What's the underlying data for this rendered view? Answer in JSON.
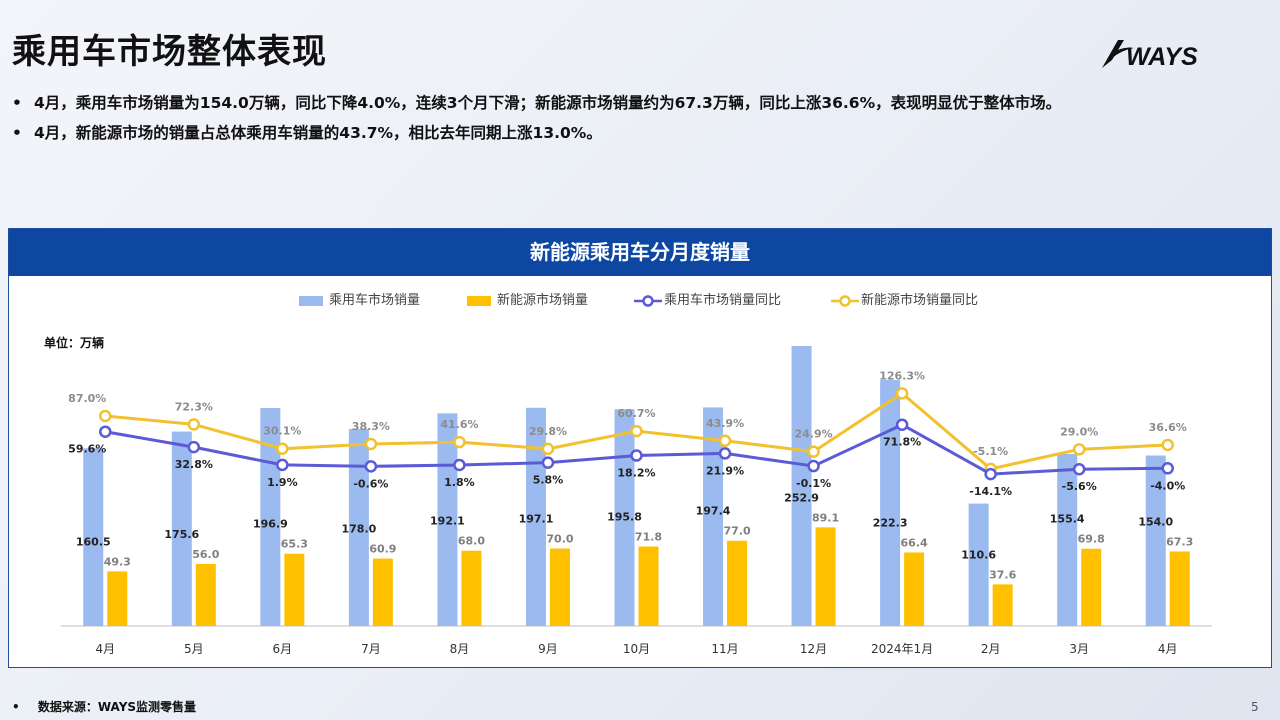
{
  "header": {
    "title": "乘用车市场整体表现",
    "logo_text": "WAYS",
    "bullets": [
      "4月，乘用车市场销量为154.0万辆，同比下降4.0%，连续3个月下滑；新能源市场销量约为67.3万辆，同比上涨36.6%，表现明显优于整体市场。",
      "4月，新能源市场的销量占总体乘用车销量的43.7%，相比去年同期上涨13.0%。"
    ]
  },
  "footer": {
    "source": "数据来源：WAYS监测零售量",
    "page": "5"
  },
  "colors": {
    "total_bar": "#9bbaf0",
    "nev_bar": "#ffc000",
    "total_line": "#5b5bd6",
    "nev_line": "#f2c12e",
    "header_blue": "#0d47a1"
  },
  "chart_data": {
    "type": "bar",
    "title": "新能源乘用车分月度销量",
    "unit_label": "单位：万辆",
    "categories": [
      "4月",
      "5月",
      "6月",
      "7月",
      "8月",
      "9月",
      "10月",
      "11月",
      "12月",
      "2024年1月",
      "2月",
      "3月",
      "4月"
    ],
    "series": [
      {
        "name": "乘用车市场销量",
        "type": "bar",
        "axis": "left",
        "values": [
          160.5,
          175.6,
          196.9,
          178.0,
          192.1,
          197.1,
          195.8,
          197.4,
          252.9,
          222.3,
          110.6,
          155.4,
          154.0
        ]
      },
      {
        "name": "新能源市场销量",
        "type": "bar",
        "axis": "left",
        "values": [
          49.3,
          56.0,
          65.3,
          60.9,
          68.0,
          70.0,
          71.8,
          77.0,
          89.1,
          66.4,
          37.6,
          69.8,
          67.3
        ]
      },
      {
        "name": "乘用车市场销量同比",
        "type": "line",
        "axis": "right",
        "unit": "%",
        "values": [
          59.6,
          32.8,
          1.9,
          -0.6,
          1.8,
          5.8,
          18.2,
          21.9,
          -0.1,
          71.8,
          -14.1,
          -5.6,
          -4.0
        ]
      },
      {
        "name": "新能源市场销量同比",
        "type": "line",
        "axis": "right",
        "unit": "%",
        "values": [
          87.0,
          72.3,
          30.1,
          38.3,
          41.6,
          29.8,
          60.7,
          43.9,
          24.9,
          126.3,
          -5.1,
          29.0,
          36.6
        ]
      }
    ],
    "legend_position": "top",
    "grid": false
  }
}
